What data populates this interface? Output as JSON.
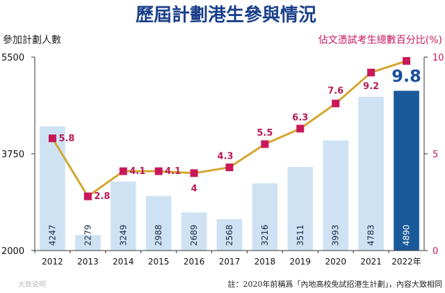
{
  "chart_data": {
    "type": "bar",
    "title": "歷屆計劃港生參與情況",
    "left_axis_title": "參加計劃人數",
    "right_axis_title": "佔文憑試考生總數百分比(%)",
    "categories": [
      "2012",
      "2013",
      "2014",
      "2015",
      "2016",
      "2017",
      "2018",
      "2019",
      "2020",
      "2021",
      "2022年"
    ],
    "series": [
      {
        "name": "參加計劃人數",
        "type": "bar",
        "axis": "left",
        "values": [
          4247,
          2279,
          3249,
          2988,
          2689,
          2568,
          3216,
          3511,
          3993,
          4783,
          4890
        ],
        "labels": [
          "4247",
          "2279",
          "3249",
          "2988",
          "2689",
          "2568",
          "3216",
          "3511",
          "3993",
          "4783",
          "4890"
        ]
      },
      {
        "name": "佔文憑試考生總數百分比",
        "type": "line",
        "axis": "right",
        "values": [
          5.8,
          2.8,
          4.1,
          4.1,
          4.0,
          4.3,
          5.5,
          6.3,
          7.6,
          9.2,
          9.8
        ],
        "labels": [
          "5.8",
          "2.8",
          "4.1",
          "4.1",
          "4",
          "4.3",
          "5.5",
          "6.3",
          "7.6",
          "9.2",
          "9.8"
        ]
      }
    ],
    "ylim_left": [
      2000,
      5500
    ],
    "ylim_right": [
      0,
      10
    ],
    "left_ticks": [
      "5500",
      "3750",
      "2000"
    ],
    "left_tick_values": [
      5500,
      3750,
      2000
    ],
    "right_ticks": [
      "10",
      "5",
      "0"
    ],
    "right_tick_values": [
      10,
      5,
      0
    ],
    "highlight_index": 10
  },
  "colors": {
    "bar": "#cfe2f3",
    "bar_highlight": "#1a5a9a",
    "line": "#d4a52f",
    "marker": "#c8185a"
  },
  "footnote": "註：2020年前稱爲「內地高校免試招港生計劃」，內容大致相同",
  "watermark": "大致说明"
}
